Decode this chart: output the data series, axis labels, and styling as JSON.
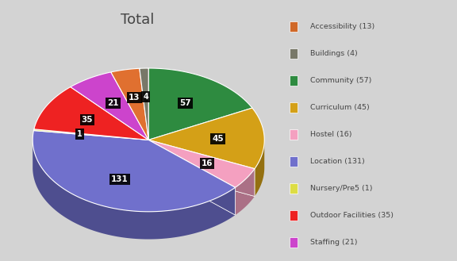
{
  "title": "Total",
  "categories": [
    "Accessibility (13)",
    "Buildings (4)",
    "Community (57)",
    "Curriculum (45)",
    "Hostel (16)",
    "Location (131)",
    "Nursery/Pre5 (1)",
    "Outdoor Facilities (35)",
    "Staffing (21)"
  ],
  "labels_short": [
    "13",
    "4",
    "57",
    "45",
    "16",
    "131",
    "1",
    "35",
    "21"
  ],
  "values": [
    13,
    4,
    57,
    45,
    16,
    131,
    1,
    35,
    21
  ],
  "colors": [
    "#E07030",
    "#787868",
    "#2E8B40",
    "#D4A017",
    "#F4A0C0",
    "#7070CC",
    "#DDDD44",
    "#EE2222",
    "#CC44CC"
  ],
  "legend_square_colors": [
    "#D06828",
    "#787868",
    "#2E8B40",
    "#D4A017",
    "#F4A0C0",
    "#7070CC",
    "#DDDD44",
    "#EE2222",
    "#CC44CC"
  ],
  "background_color": "#D3D3D3",
  "title_fontsize": 13,
  "order": [
    2,
    3,
    4,
    5,
    6,
    7,
    8,
    0,
    1
  ]
}
